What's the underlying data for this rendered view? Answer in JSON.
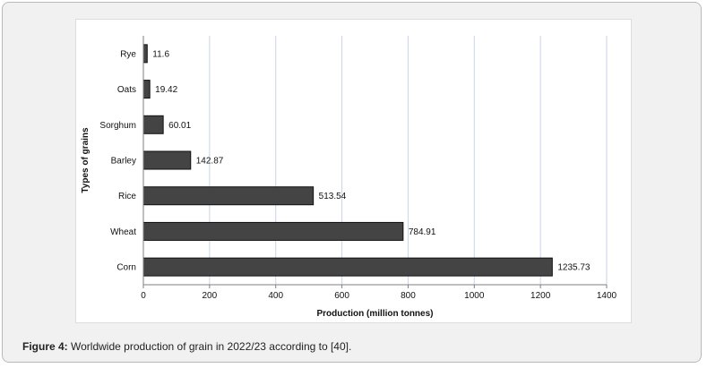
{
  "caption": {
    "label": "Figure 4:",
    "text": "Worldwide production of grain in 2022/23 according to [40]."
  },
  "colors": {
    "bar_fill": "#444444",
    "bar_stroke": "#111111",
    "grid": "#c9d6e6",
    "axis": "#7f7f7f"
  },
  "chart_data": {
    "type": "bar",
    "orientation": "horizontal",
    "categories": [
      "Rye",
      "Oats",
      "Sorghum",
      "Barley",
      "Rice",
      "Wheat",
      "Corn"
    ],
    "values": [
      11.6,
      19.42,
      60.01,
      142.87,
      513.54,
      784.91,
      1235.73
    ],
    "value_labels": [
      "11.6",
      "19.42",
      "60.01",
      "142.87",
      "513.54",
      "784.91",
      "1235.73"
    ],
    "xlabel": "Production (million tonnes)",
    "ylabel": "Types of grains",
    "xlim": [
      0,
      1400
    ],
    "xticks": [
      0,
      200,
      400,
      600,
      800,
      1000,
      1200,
      1400
    ],
    "grid": "vertical",
    "legend": "none"
  }
}
